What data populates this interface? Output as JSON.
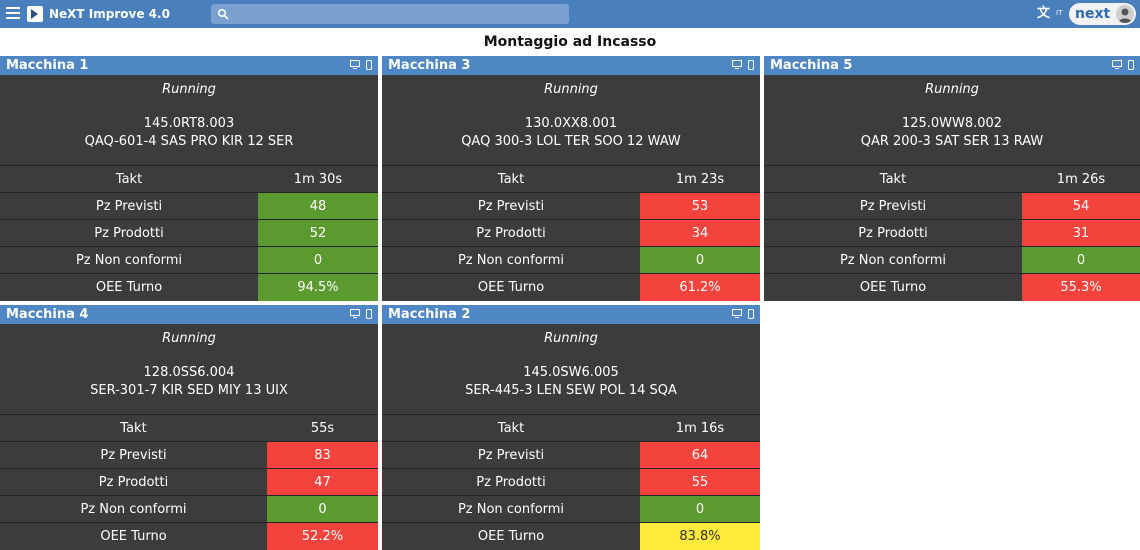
{
  "app": {
    "title": "NeXT Improve 4.0",
    "search_placeholder": "",
    "language": "IT",
    "brand": "next"
  },
  "page": {
    "title": "Montaggio ad Incasso"
  },
  "colors": {
    "green": "#5b9a2f",
    "red": "#f4433c",
    "yellow": "#ffea3b",
    "header_blue": "#4a7fbd"
  },
  "machines": [
    {
      "name": "Macchina 1",
      "status": "Running",
      "code": "145.0RT8.003",
      "product": "QAQ-601-4 SAS PRO KIR 12 SER",
      "rows": [
        {
          "label": "Takt",
          "value": "1m 30s",
          "state": "none"
        },
        {
          "label": "Pz Previsti",
          "value": "48",
          "state": "green"
        },
        {
          "label": "Pz Prodotti",
          "value": "52",
          "state": "green"
        },
        {
          "label": "Pz Non conformi",
          "value": "0",
          "state": "green"
        },
        {
          "label": "OEE Turno",
          "value": "94.5%",
          "state": "green"
        }
      ]
    },
    {
      "name": "Macchina 3",
      "status": "Running",
      "code": "130.0XX8.001",
      "product": "QAQ 300-3 LOL TER SOO 12 WAW",
      "rows": [
        {
          "label": "Takt",
          "value": "1m 23s",
          "state": "none"
        },
        {
          "label": "Pz Previsti",
          "value": "53",
          "state": "red"
        },
        {
          "label": "Pz Prodotti",
          "value": "34",
          "state": "red"
        },
        {
          "label": "Pz Non conformi",
          "value": "0",
          "state": "green"
        },
        {
          "label": "OEE Turno",
          "value": "61.2%",
          "state": "red"
        }
      ]
    },
    {
      "name": "Macchina 5",
      "status": "Running",
      "code": "125.0WW8.002",
      "product": "QAR 200-3 SAT SER 13 RAW",
      "rows": [
        {
          "label": "Takt",
          "value": "1m 26s",
          "state": "none"
        },
        {
          "label": "Pz Previsti",
          "value": "54",
          "state": "red"
        },
        {
          "label": "Pz Prodotti",
          "value": "31",
          "state": "red"
        },
        {
          "label": "Pz Non conformi",
          "value": "0",
          "state": "green"
        },
        {
          "label": "OEE Turno",
          "value": "55.3%",
          "state": "red"
        }
      ]
    },
    {
      "name": "Macchina 4",
      "status": "Running",
      "code": "128.0SS6.004",
      "product": "SER-301-7 KIR SED MIY 13 UIX",
      "rows": [
        {
          "label": "Takt",
          "value": "55s",
          "state": "none"
        },
        {
          "label": "Pz Previsti",
          "value": "83",
          "state": "red"
        },
        {
          "label": "Pz Prodotti",
          "value": "47",
          "state": "red"
        },
        {
          "label": "Pz Non conformi",
          "value": "0",
          "state": "green"
        },
        {
          "label": "OEE Turno",
          "value": "52.2%",
          "state": "red"
        }
      ]
    },
    {
      "name": "Macchina 2",
      "status": "Running",
      "code": "145.0SW6.005",
      "product": "SER-445-3 LEN SEW POL 14 SQA",
      "rows": [
        {
          "label": "Takt",
          "value": "1m 16s",
          "state": "none"
        },
        {
          "label": "Pz Previsti",
          "value": "64",
          "state": "red"
        },
        {
          "label": "Pz Prodotti",
          "value": "55",
          "state": "red"
        },
        {
          "label": "Pz Non conformi",
          "value": "0",
          "state": "green"
        },
        {
          "label": "OEE Turno",
          "value": "83.8%",
          "state": "yellow"
        }
      ]
    }
  ]
}
